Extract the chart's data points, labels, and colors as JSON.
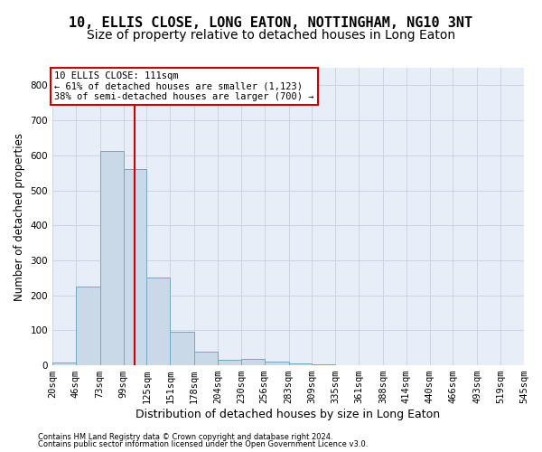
{
  "title": "10, ELLIS CLOSE, LONG EATON, NOTTINGHAM, NG10 3NT",
  "subtitle": "Size of property relative to detached houses in Long Eaton",
  "xlabel": "Distribution of detached houses by size in Long Eaton",
  "ylabel": "Number of detached properties",
  "footer1": "Contains HM Land Registry data © Crown copyright and database right 2024.",
  "footer2": "Contains public sector information licensed under the Open Government Licence v3.0.",
  "property_size": 111,
  "annotation_line1": "10 ELLIS CLOSE: 111sqm",
  "annotation_line2": "← 61% of detached houses are smaller (1,123)",
  "annotation_line3": "38% of semi-detached houses are larger (700) →",
  "bin_edges": [
    20,
    46,
    73,
    99,
    125,
    151,
    178,
    204,
    230,
    256,
    283,
    309,
    335,
    361,
    388,
    414,
    440,
    466,
    493,
    519,
    545
  ],
  "bar_heights": [
    8,
    225,
    612,
    562,
    250,
    95,
    40,
    15,
    18,
    10,
    5,
    2,
    0,
    0,
    0,
    0,
    0,
    0,
    0,
    0
  ],
  "bar_color": "#c9d9e8",
  "bar_edgecolor": "#6fa8c8",
  "redline_color": "#cc0000",
  "annotation_box_color": "#cc0000",
  "grid_color": "#c8d0e0",
  "bg_color": "#e8eef8",
  "ylim": [
    0,
    850
  ],
  "yticks": [
    0,
    100,
    200,
    300,
    400,
    500,
    600,
    700,
    800
  ],
  "title_fontsize": 11,
  "subtitle_fontsize": 10,
  "xlabel_fontsize": 9,
  "ylabel_fontsize": 8.5,
  "tick_fontsize": 7.5,
  "footer_fontsize": 6,
  "ann_fontsize": 7.5
}
